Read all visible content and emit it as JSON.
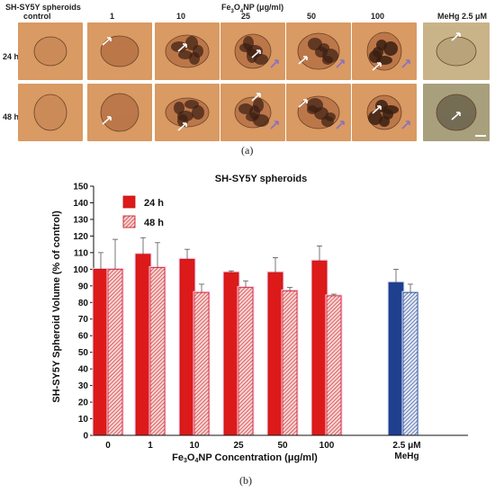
{
  "panel_a": {
    "header_label": "SH-SY5Y spheroids",
    "control_label": "control",
    "concentration_header": "Fe3O4NP (μg/ml)",
    "concentrations": [
      "1",
      "10",
      "25",
      "50",
      "100"
    ],
    "mehg_label": "MeHg 2.5 μM",
    "row_labels": [
      "24 h",
      "48 h"
    ],
    "caption": "(a)",
    "colors": {
      "background": "#d99a63",
      "spheroid": "#7a4a2a",
      "nanoparticle": "#3a1e12",
      "arrow": "#ffffff",
      "purple_arrow": "#8a6fc0"
    }
  },
  "chart_data": {
    "type": "bar",
    "title": "SH-SY5Y spheroids",
    "ylabel": "SH-SY5Y Spheroid Volume (% of control)",
    "xlabel": "Fe3O4NP Concentration (μg/ml)",
    "categories": [
      "0",
      "1",
      "10",
      "25",
      "50",
      "100",
      "2.5 μM MeHg"
    ],
    "ylim": [
      0,
      150
    ],
    "yticks": [
      0,
      10,
      20,
      30,
      40,
      50,
      60,
      70,
      80,
      90,
      100,
      110,
      120,
      130,
      140,
      150
    ],
    "legend_position": "top-left",
    "series": [
      {
        "name": "24 h",
        "values": [
          100,
          109,
          106,
          98,
          98,
          105,
          92
        ],
        "errors": [
          10,
          10,
          6,
          1,
          9,
          9,
          8
        ],
        "color": "#dd1a1a",
        "mehg_color": "#1f3f8f"
      },
      {
        "name": "48 h",
        "values": [
          100,
          101,
          86,
          89,
          87,
          84,
          86
        ],
        "errors": [
          18,
          15,
          5,
          4,
          2,
          1,
          5
        ],
        "color": "#f4b8b8",
        "mehg_color": "#c7d3ea",
        "pattern": "hatched"
      }
    ],
    "caption": "(b)"
  }
}
